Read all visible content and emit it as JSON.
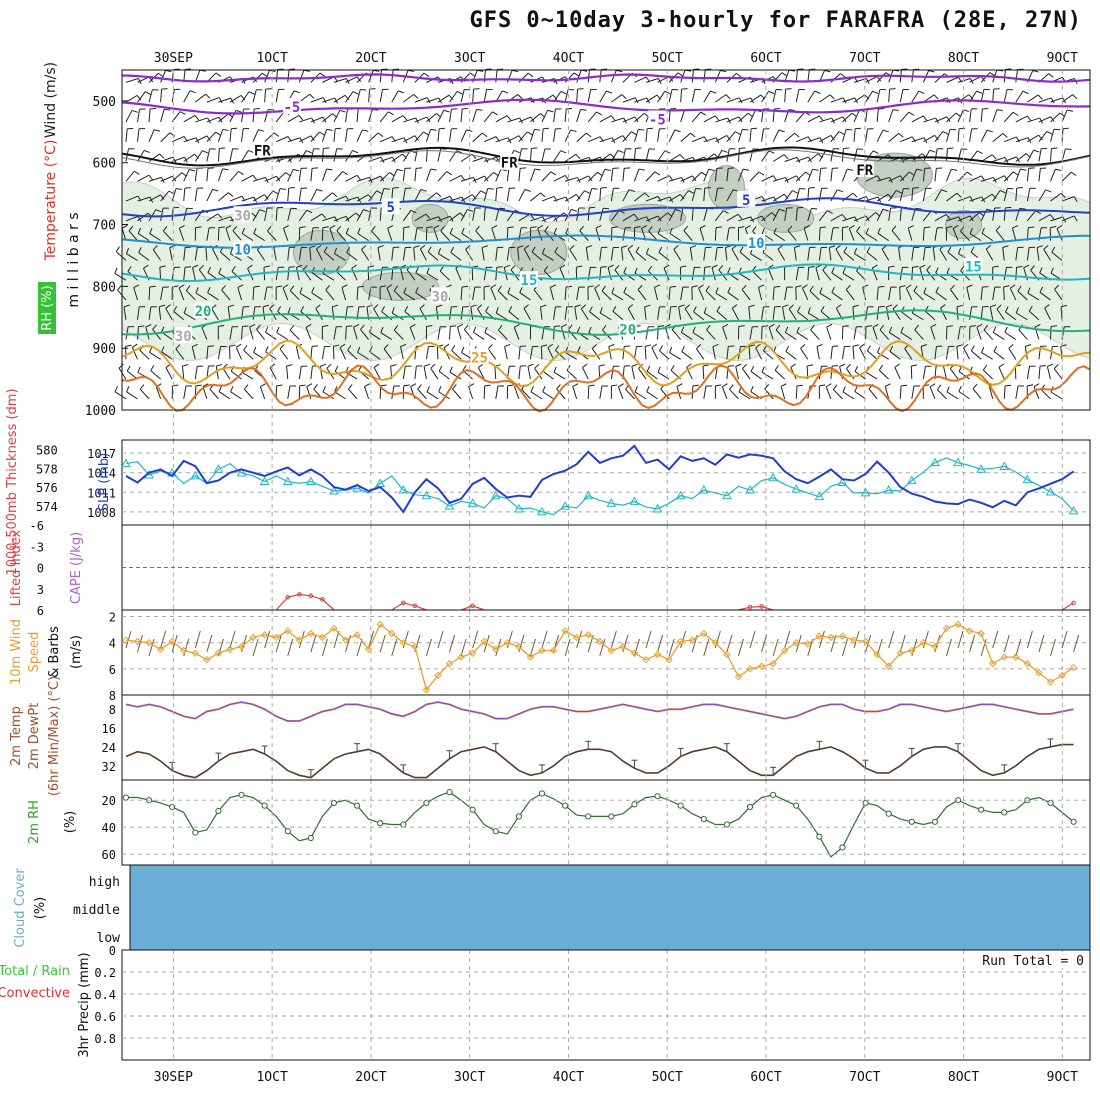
{
  "title": "GFS 0~10day 3-hourly for FARAFRA (28E, 27N)",
  "colors": {
    "wind_label": "#222222",
    "temp_label": "#e0301e",
    "rh_label_bg": "#36c236",
    "slp": "#1e3fd0",
    "thickness": "#21b7c4",
    "lifted": "#e04040",
    "cape": "#b060d0",
    "wind10": "#e8a030",
    "temp2m": "#a0522d",
    "dewpt": "#7a4bd0",
    "rh2m": "#2fa02f",
    "cloud": "#6baed6",
    "precip_total": "#33cc33",
    "precip_conv": "#e03030"
  },
  "chart_data": {
    "type": "meteogram",
    "x_ticks": [
      "30SEP",
      "1OCT",
      "2OCT",
      "3OCT",
      "4OCT",
      "5OCT",
      "6OCT",
      "7OCT",
      "8OCT",
      "9OCT"
    ],
    "x_range_days": [
      -0.52,
      9.28
    ],
    "panels": [
      {
        "id": "upper_air",
        "ylabels": [
          "Wind (m/s)",
          "Temperature (°C)",
          "RH (%)",
          "m i l l i b a r s"
        ],
        "y_ticks": [
          "500",
          "600",
          "700",
          "800",
          "900",
          "1000"
        ],
        "y_range_mb": [
          450,
          1000
        ],
        "contour_labels": [
          {
            "text": "-5",
            "day": 1.2,
            "mb": 510,
            "color": "#8a2bd0"
          },
          {
            "text": "-5",
            "day": 4.9,
            "mb": 530,
            "color": "#8a2bd0"
          },
          {
            "text": "FR",
            "day": 0.9,
            "mb": 580,
            "color": "#111111"
          },
          {
            "text": "FR",
            "day": 3.4,
            "mb": 600,
            "color": "#111111"
          },
          {
            "text": "FR",
            "day": 7.0,
            "mb": 612,
            "color": "#111111"
          },
          {
            "text": "5",
            "day": 2.2,
            "mb": 672,
            "color": "#1e3fd0"
          },
          {
            "text": "5",
            "day": 5.8,
            "mb": 660,
            "color": "#1e3fd0"
          },
          {
            "text": "10",
            "day": 0.7,
            "mb": 740,
            "color": "#1e90d0"
          },
          {
            "text": "10",
            "day": 5.9,
            "mb": 730,
            "color": "#1e90d0"
          },
          {
            "text": "15",
            "day": 3.6,
            "mb": 790,
            "color": "#20b8c0"
          },
          {
            "text": "15",
            "day": 8.1,
            "mb": 768,
            "color": "#20b8c0"
          },
          {
            "text": "20",
            "day": 0.3,
            "mb": 840,
            "color": "#20b080"
          },
          {
            "text": "20",
            "day": 4.6,
            "mb": 870,
            "color": "#20b080"
          },
          {
            "text": "25",
            "day": 3.1,
            "mb": 915,
            "color": "#e0a020"
          },
          {
            "text": "30",
            "day": 0.7,
            "mb": 685,
            "color": "#aaaaaa"
          },
          {
            "text": "30",
            "day": 2.7,
            "mb": 816,
            "color": "#aaaaaa"
          },
          {
            "text": "30",
            "day": 0.1,
            "mb": 880,
            "color": "#aaaaaa"
          }
        ]
      },
      {
        "id": "thickness_slp",
        "ylabels": [
          "1000-500mb Thickness (dm)",
          "SLP (mb)"
        ],
        "y_ticks_left": [
          "580",
          "578",
          "576",
          "574"
        ],
        "y_ticks_right": [
          "1017",
          "1014",
          "1011",
          "1008"
        ],
        "slp_range": [
          1006,
          1019
        ],
        "slp_mb": [
          1013.5,
          1012.5,
          1014.0,
          1014.5,
          1013.5,
          1015.8,
          1015.0,
          1012.4,
          1012.8,
          1014.0,
          1014.5,
          1014.0,
          1013.5,
          1014.2,
          1014.8,
          1013.6,
          1014.5,
          1013.5,
          1011.8,
          1011.4,
          1012.1,
          1011.2,
          1011.8,
          1010.2,
          1008.0,
          1011.0,
          1013.0,
          1011.6,
          1009.4,
          1010.0,
          1012.3,
          1013.2,
          1011.5,
          1010.2,
          1010.5,
          1010.3,
          1012.9,
          1013.8,
          1014.3,
          1015.3,
          1017.2,
          1015.5,
          1016.2,
          1016.6,
          1018.1,
          1015.5,
          1016.0,
          1014.5,
          1016.5,
          1015.8,
          1016.2,
          1015.2,
          1016.8,
          1016.3,
          1016.8,
          1016.6,
          1016.2,
          1014.2,
          1013.0,
          1012.4,
          1013.4,
          1014.5,
          1013.0,
          1012.8,
          1013.8,
          1015.7,
          1014.0,
          1011.8,
          1010.8,
          1010.3,
          1009.6,
          1009.3,
          1009.2,
          1009.9,
          1009.4,
          1008.7,
          1009.7,
          1009.0,
          1011.0,
          1011.6,
          1012.3,
          1013.0,
          1014.2
        ],
        "thickness_dm": [
          578.5,
          578.7,
          577.3,
          577.7,
          577.5,
          576.4,
          577.2,
          576.4,
          577.9,
          578.5,
          577.5,
          577.2,
          576.6,
          577.2,
          576.6,
          576.4,
          576.6,
          576.1,
          575.6,
          575.7,
          575.9,
          575.4,
          576.4,
          577.2,
          575.7,
          575.2,
          575.1,
          574.8,
          574.0,
          574.5,
          574.3,
          573.8,
          575.1,
          574.8,
          573.7,
          573.8,
          573.4,
          573.1,
          574.0,
          573.8,
          575.1,
          574.6,
          574.3,
          574.1,
          574.5,
          573.9,
          573.7,
          574.3,
          575.1,
          574.8,
          575.7,
          575.4,
          575.1,
          576.1,
          575.7,
          576.7,
          577.0,
          576.3,
          575.8,
          575.4,
          575.0,
          576.1,
          576.5,
          575.4,
          575.4,
          575.3,
          575.7,
          575.6,
          576.7,
          577.6,
          578.6,
          579.1,
          578.6,
          578.3,
          577.9,
          578.0,
          578.2,
          577.6,
          576.8,
          576.2,
          575.5,
          574.8,
          573.5
        ]
      },
      {
        "id": "lifted_cape",
        "ylabels": [
          "Lifted Index",
          "CAPE (J/kg)"
        ],
        "y_ticks": [
          "-6",
          "-3",
          "0",
          "3",
          "6"
        ],
        "li_range": [
          -6,
          6
        ],
        "lifted_index": [
          6,
          6,
          6,
          6,
          6,
          6,
          6,
          6,
          6,
          6,
          6,
          6,
          6,
          6,
          4.2,
          3.8,
          4.0,
          4.5,
          6,
          6,
          6,
          6,
          6,
          6,
          5.0,
          5.4,
          6,
          6,
          6,
          6,
          5.4,
          6,
          6,
          6,
          6,
          6,
          6,
          6,
          6,
          6,
          6,
          6,
          6,
          6,
          6,
          6,
          6,
          6,
          6,
          6,
          6,
          6,
          6,
          6,
          5.6,
          5.5,
          6,
          6,
          6,
          6,
          6,
          6,
          6,
          6,
          6,
          6,
          6,
          6,
          6,
          6,
          6,
          6,
          6,
          6,
          6,
          6,
          6,
          6,
          6,
          6,
          6,
          6,
          5.0
        ]
      },
      {
        "id": "wind10m",
        "ylabels": [
          "10m Wind Speed & Barbs (m/s)"
        ],
        "y_ticks": [
          "8",
          "6",
          "4",
          "2"
        ],
        "y_range": [
          1.5,
          8
        ],
        "speed_ms": [
          3.8,
          3.9,
          4.0,
          4.5,
          3.9,
          4.6,
          4.8,
          5.3,
          4.8,
          4.5,
          4.3,
          3.6,
          3.4,
          3.6,
          3.1,
          3.8,
          3.3,
          3.6,
          2.9,
          3.8,
          3.4,
          4.5,
          2.6,
          3.3,
          4.0,
          4.3,
          7.6,
          6.5,
          5.6,
          5.1,
          4.8,
          3.9,
          4.5,
          4.0,
          4.3,
          5.1,
          4.6,
          4.6,
          3.1,
          3.6,
          3.4,
          3.9,
          4.6,
          4.3,
          4.8,
          5.3,
          4.9,
          5.3,
          3.9,
          3.8,
          3.3,
          4.0,
          4.9,
          6.6,
          6.0,
          5.8,
          5.6,
          4.6,
          4.0,
          4.1,
          3.5,
          3.6,
          3.5,
          3.8,
          3.9,
          4.9,
          5.8,
          4.8,
          4.6,
          4.0,
          4.3,
          2.9,
          2.6,
          3.1,
          3.3,
          5.6,
          5.1,
          5.1,
          5.6,
          6.3,
          7.0,
          6.5,
          5.9
        ]
      },
      {
        "id": "temp2m",
        "ylabels": [
          "2m Temp",
          "2m DewPt",
          "(6hr Min/Max) (°C)"
        ],
        "y_ticks": [
          "32",
          "24",
          "16",
          "8"
        ],
        "y_range": [
          2,
          38
        ],
        "temp_c": [
          28,
          26,
          27,
          30,
          34,
          36,
          37,
          34,
          30,
          27,
          26,
          25,
          27,
          30,
          34,
          36,
          37,
          33,
          29,
          27,
          26,
          25,
          27,
          31,
          35,
          37,
          37,
          33,
          29,
          26,
          25,
          24,
          26,
          30,
          34,
          36,
          35,
          32,
          28,
          26,
          25,
          25,
          26,
          30,
          33,
          35,
          35,
          32,
          28,
          26,
          25,
          24,
          26,
          30,
          34,
          36,
          36,
          32,
          28,
          26,
          25,
          24,
          26,
          29,
          33,
          35,
          35,
          32,
          28,
          25,
          24,
          24,
          26,
          30,
          34,
          36,
          35,
          32,
          28,
          25,
          24,
          23,
          23
        ],
        "dewpt_c": [
          6,
          7,
          6,
          7,
          9,
          11,
          12,
          9,
          8,
          6,
          5,
          6,
          8,
          11,
          13,
          13,
          11,
          9,
          8,
          6,
          6,
          7,
          8,
          10,
          11,
          9,
          6,
          5,
          6,
          8,
          9,
          10,
          12,
          12,
          10,
          8,
          7,
          7,
          8,
          9,
          9,
          8,
          7,
          6,
          7,
          8,
          9,
          8,
          8,
          7,
          6,
          6,
          7,
          8,
          9,
          10,
          11,
          12,
          11,
          9,
          7,
          6,
          6,
          8,
          9,
          9,
          8,
          6,
          6,
          7,
          8,
          9,
          8,
          7,
          6,
          6,
          7,
          8,
          9,
          10,
          10,
          9,
          8
        ]
      },
      {
        "id": "rh2m",
        "ylabels": [
          "2m RH",
          "(%)"
        ],
        "y_ticks": [
          "60",
          "40",
          "20"
        ],
        "y_range": [
          5,
          68
        ],
        "rh_pct": [
          18,
          18,
          20,
          22,
          25,
          29,
          44,
          42,
          28,
          18,
          16,
          18,
          24,
          32,
          43,
          50,
          48,
          32,
          22,
          20,
          24,
          34,
          37,
          38,
          38,
          29,
          22,
          17,
          14,
          20,
          27,
          38,
          43,
          45,
          32,
          20,
          15,
          19,
          24,
          31,
          32,
          32,
          32,
          30,
          23,
          18,
          17,
          20,
          24,
          30,
          34,
          38,
          38,
          34,
          25,
          18,
          16,
          20,
          24,
          34,
          47,
          62,
          55,
          38,
          22,
          24,
          30,
          34,
          36,
          38,
          36,
          25,
          20,
          24,
          27,
          29,
          29,
          27,
          20,
          18,
          22,
          29,
          36
        ]
      },
      {
        "id": "cloud",
        "ylabels": [
          "Cloud Cover (%)"
        ],
        "levels": [
          "high",
          "middle",
          "low"
        ]
      },
      {
        "id": "precip",
        "ylabels": [
          "3hr Precip (mm)",
          "Total / Rain",
          "Convective"
        ],
        "y_ticks": [
          "0.8",
          "0.6",
          "0.4",
          "0.2",
          "0"
        ],
        "y_range": [
          0,
          1
        ],
        "run_total_label": "Run Total = 0",
        "values": []
      }
    ]
  }
}
